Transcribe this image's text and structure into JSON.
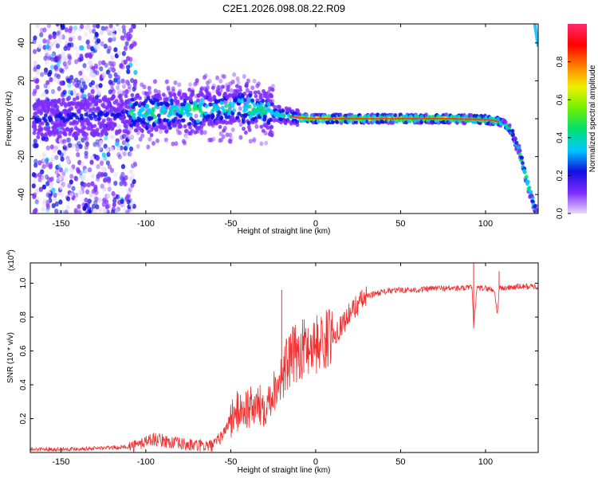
{
  "chart_data": [
    {
      "type": "heatmap",
      "title": "C2E1.2026.098.08.22.R09",
      "xlabel": "Height of straight line (km)",
      "ylabel": "Frequency (Hz)",
      "xlim": [
        -168,
        131
      ],
      "ylim": [
        -50,
        50
      ],
      "xticks": [
        -150,
        -100,
        -50,
        0,
        50,
        100
      ],
      "yticks": [
        -40,
        -20,
        0,
        20,
        40
      ],
      "colorbar": {
        "label": "Normalized spectral amplitude",
        "range": [
          0.0,
          1.0
        ],
        "ticks": [
          "0.0",
          "0.2",
          "0.4",
          "0.6",
          "0.8"
        ],
        "colors": [
          "#e8d8ff",
          "#7f2bff",
          "#1010e0",
          "#00c8ff",
          "#00e070",
          "#70f000",
          "#f0f000",
          "#ff8000",
          "#ff0000",
          "#ff2a6e"
        ]
      },
      "ridge": {
        "description": "frequency of the strongest signal vs height",
        "x": [
          -160,
          -140,
          -120,
          -100,
          -80,
          -60,
          -45,
          -30,
          -20,
          -10,
          0,
          20,
          40,
          60,
          80,
          100,
          105,
          110,
          115,
          120,
          125,
          130
        ],
        "y": [
          0,
          1,
          2,
          3,
          4,
          5,
          6,
          4,
          2,
          0.5,
          0,
          0,
          0,
          0,
          0,
          -0.5,
          -1,
          -2,
          -6,
          -18,
          -35,
          -50
        ]
      }
    },
    {
      "type": "line",
      "xlabel": "Height of straight line (km)",
      "ylabel": "SNR (10 * v/v)",
      "y_multiplier": "(x10",
      "y_multiplier_exp": "4",
      "y_multiplier_close": ")",
      "xlim": [
        -168,
        131
      ],
      "ylim": [
        0,
        1.12
      ],
      "xticks": [
        -150,
        -100,
        -50,
        0,
        50,
        100
      ],
      "yticks": [
        0.2,
        0.4,
        0.6,
        0.8,
        1.0
      ],
      "ytick_labels": [
        "0.2",
        "0.4",
        "0.6",
        "0.8",
        "1.0"
      ],
      "series": [
        {
          "name": "SNR",
          "color": "#ee3030",
          "x": [
            -168,
            -150,
            -130,
            -115,
            -105,
            -100,
            -95,
            -90,
            -80,
            -70,
            -60,
            -55,
            -50,
            -45,
            -40,
            -35,
            -30,
            -25,
            -20,
            -15,
            -10,
            -5,
            0,
            5,
            10,
            15,
            20,
            25,
            30,
            35,
            40,
            50,
            60,
            70,
            80,
            90,
            92,
            93,
            95,
            100,
            105,
            107,
            108,
            110,
            120,
            131
          ],
          "y": [
            0.02,
            0.02,
            0.025,
            0.03,
            0.04,
            0.07,
            0.08,
            0.07,
            0.05,
            0.04,
            0.04,
            0.1,
            0.2,
            0.25,
            0.26,
            0.27,
            0.28,
            0.36,
            0.45,
            0.55,
            0.6,
            0.63,
            0.64,
            0.66,
            0.69,
            0.75,
            0.82,
            0.88,
            0.92,
            0.94,
            0.95,
            0.96,
            0.96,
            0.97,
            0.97,
            0.97,
            0.98,
            0.75,
            0.97,
            0.97,
            0.96,
            0.82,
            0.97,
            0.97,
            0.98,
            0.98
          ]
        }
      ],
      "spikes": [
        {
          "x": -20,
          "y": 0.96
        },
        {
          "x": 93,
          "y": 1.12
        },
        {
          "x": 108,
          "y": 1.07
        }
      ]
    }
  ]
}
